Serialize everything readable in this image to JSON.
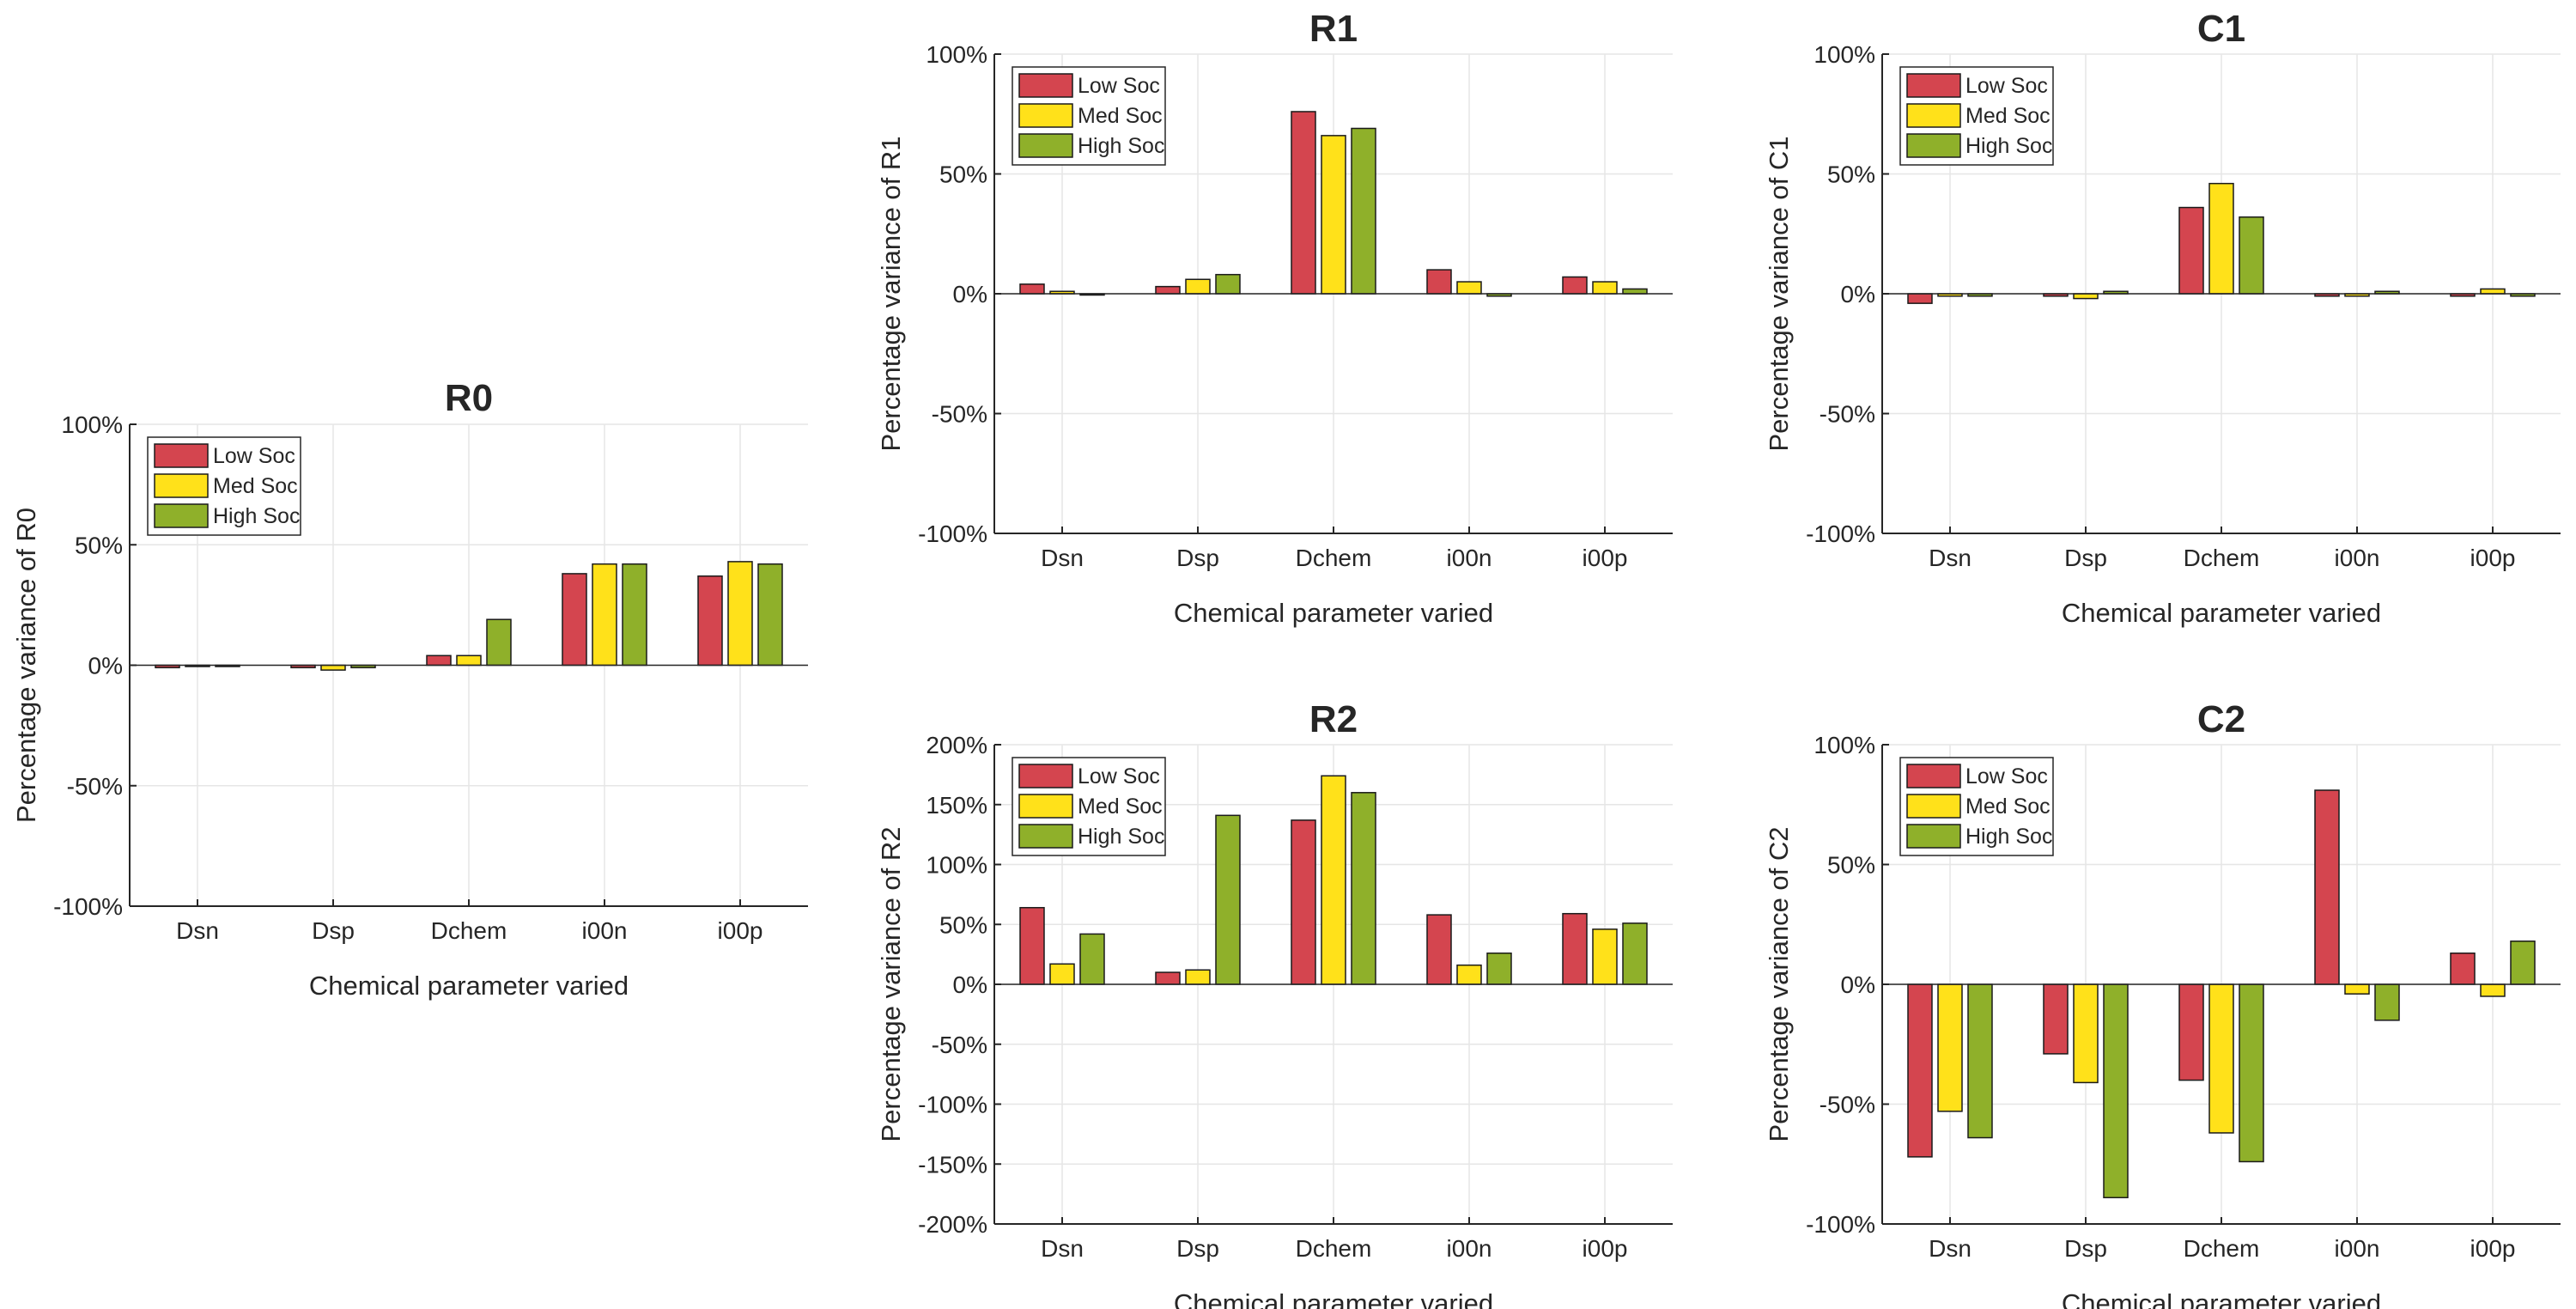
{
  "colors": {
    "low": "#d4454f",
    "med": "#ffe11a",
    "high": "#8fb02a"
  },
  "legend": [
    "Low Soc",
    "Med Soc",
    "High Soc"
  ],
  "chart_data": [
    {
      "id": "r0",
      "type": "bar",
      "title": "R0",
      "xlabel": "Chemical parameter varied",
      "ylabel": "Percentage variance of R0",
      "categories": [
        "Dsn",
        "Dsp",
        "Dchem",
        "i00n",
        "i00p"
      ],
      "ylim": [
        -100,
        100
      ],
      "yticks": [
        -100,
        -50,
        0,
        50,
        100
      ],
      "ytick_labels": [
        "-100%",
        "-50%",
        "0%",
        "50%",
        "100%"
      ],
      "grid": true,
      "legend_position": "top-left",
      "series": [
        {
          "name": "Low Soc",
          "values": [
            -1,
            -1,
            4,
            38,
            37
          ]
        },
        {
          "name": "Med Soc",
          "values": [
            0,
            -2,
            4,
            42,
            43
          ]
        },
        {
          "name": "High Soc",
          "values": [
            0,
            -1,
            19,
            42,
            42
          ]
        }
      ]
    },
    {
      "id": "r1",
      "type": "bar",
      "title": "R1",
      "xlabel": "Chemical parameter varied",
      "ylabel": "Percentage variance of R1",
      "categories": [
        "Dsn",
        "Dsp",
        "Dchem",
        "i00n",
        "i00p"
      ],
      "ylim": [
        -100,
        100
      ],
      "yticks": [
        -100,
        -50,
        0,
        50,
        100
      ],
      "ytick_labels": [
        "-100%",
        "-50%",
        "0%",
        "50%",
        "100%"
      ],
      "grid": true,
      "legend_position": "top-left",
      "series": [
        {
          "name": "Low Soc",
          "values": [
            4,
            3,
            76,
            10,
            7
          ]
        },
        {
          "name": "Med Soc",
          "values": [
            1,
            6,
            66,
            5,
            5
          ]
        },
        {
          "name": "High Soc",
          "values": [
            0,
            8,
            69,
            -1,
            2
          ]
        }
      ]
    },
    {
      "id": "c1",
      "type": "bar",
      "title": "C1",
      "xlabel": "Chemical parameter varied",
      "ylabel": "Percentage variance of C1",
      "categories": [
        "Dsn",
        "Dsp",
        "Dchem",
        "i00n",
        "i00p"
      ],
      "ylim": [
        -100,
        100
      ],
      "yticks": [
        -100,
        -50,
        0,
        50,
        100
      ],
      "ytick_labels": [
        "-100%",
        "-50%",
        "0%",
        "50%",
        "100%"
      ],
      "grid": true,
      "legend_position": "top-left",
      "series": [
        {
          "name": "Low Soc",
          "values": [
            -4,
            -1,
            36,
            -1,
            -1
          ]
        },
        {
          "name": "Med Soc",
          "values": [
            -1,
            -2,
            46,
            -1,
            2
          ]
        },
        {
          "name": "High Soc",
          "values": [
            -1,
            1,
            32,
            1,
            -1
          ]
        }
      ]
    },
    {
      "id": "r2",
      "type": "bar",
      "title": "R2",
      "xlabel": "Chemical parameter varied",
      "ylabel": "Percentage variance of R2",
      "categories": [
        "Dsn",
        "Dsp",
        "Dchem",
        "i00n",
        "i00p"
      ],
      "ylim": [
        -200,
        200
      ],
      "yticks": [
        -200,
        -150,
        -100,
        -50,
        0,
        50,
        100,
        150,
        200
      ],
      "ytick_labels": [
        "-200%",
        "-150%",
        "-100%",
        "-50%",
        "0%",
        "50%",
        "100%",
        "150%",
        "200%"
      ],
      "grid": true,
      "legend_position": "top-left",
      "series": [
        {
          "name": "Low Soc",
          "values": [
            64,
            10,
            137,
            58,
            59
          ]
        },
        {
          "name": "Med Soc",
          "values": [
            17,
            12,
            174,
            16,
            46
          ]
        },
        {
          "name": "High Soc",
          "values": [
            42,
            141,
            160,
            26,
            51
          ]
        }
      ]
    },
    {
      "id": "c2",
      "type": "bar",
      "title": "C2",
      "xlabel": "Chemical parameter varied",
      "ylabel": "Percentage variance of C2",
      "categories": [
        "Dsn",
        "Dsp",
        "Dchem",
        "i00n",
        "i00p"
      ],
      "ylim": [
        -100,
        100
      ],
      "yticks": [
        -100,
        -50,
        0,
        50,
        100
      ],
      "ytick_labels": [
        "-100%",
        "-50%",
        "0%",
        "50%",
        "100%"
      ],
      "grid": true,
      "legend_position": "top-left",
      "series": [
        {
          "name": "Low Soc",
          "values": [
            -72,
            -29,
            -40,
            81,
            13
          ]
        },
        {
          "name": "Med Soc",
          "values": [
            -53,
            -41,
            -62,
            -4,
            -5
          ]
        },
        {
          "name": "High Soc",
          "values": [
            -64,
            -89,
            -74,
            -15,
            18
          ]
        }
      ]
    }
  ]
}
